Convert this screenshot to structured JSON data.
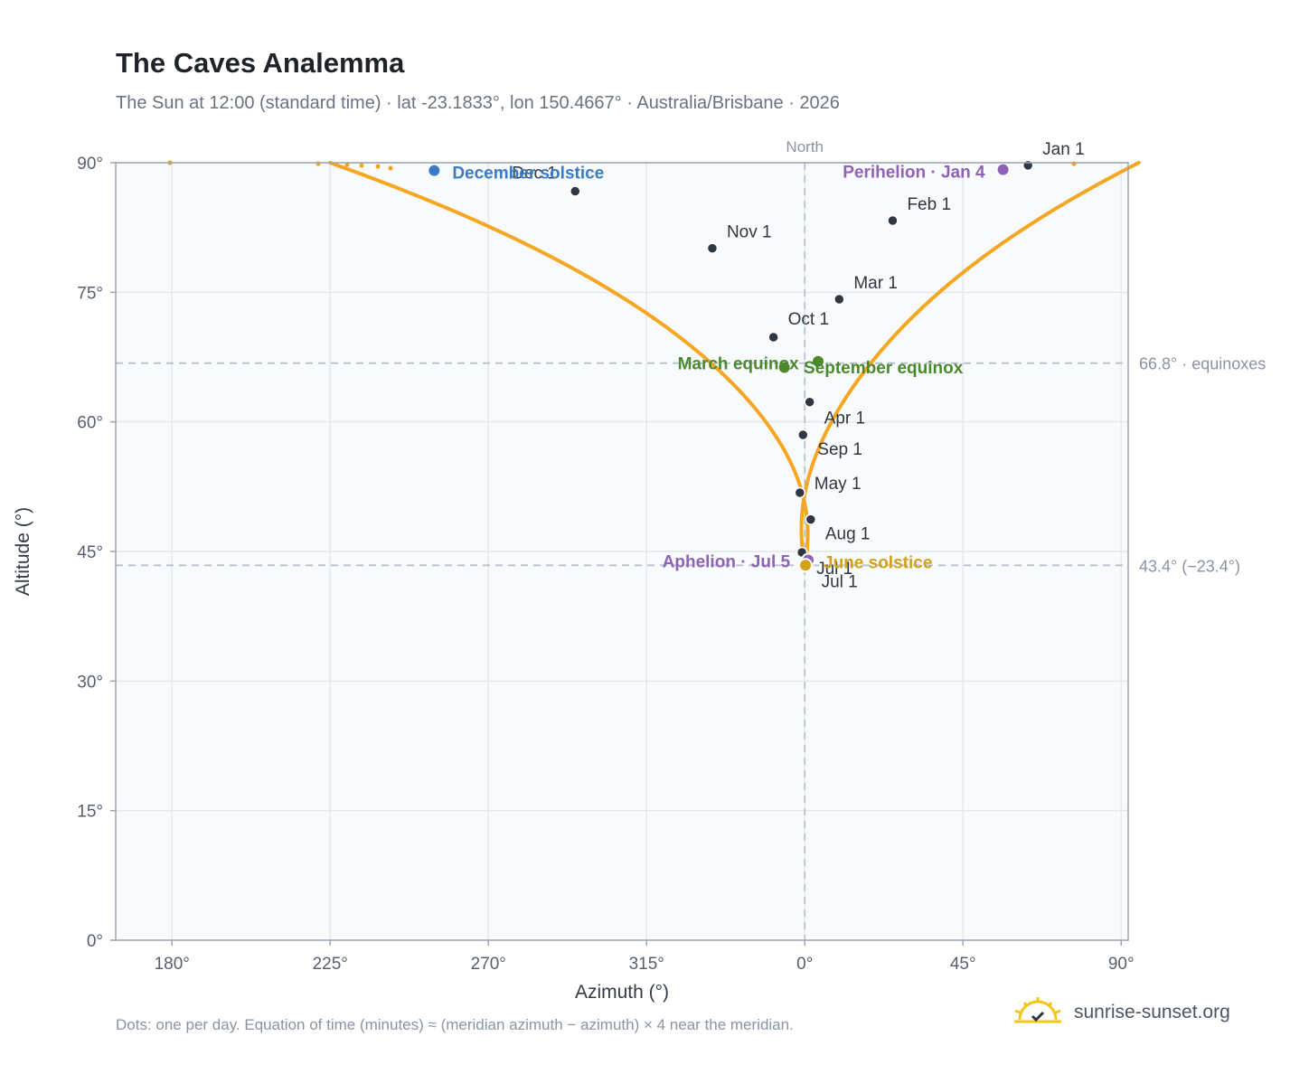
{
  "header": {
    "title": "The Caves Analemma",
    "subtitle": "The Sun at 12:00 (standard time) · lat -23.1833°, lon 150.4667° · Australia/Brisbane · 2026"
  },
  "footer": {
    "note": "Dots: one per day. Equation of time (minutes) ≈ (meridian azimuth − azimuth) × 4 near the meridian.",
    "brand": "sunrise-sunset.org"
  },
  "chart_data": {
    "type": "scatter",
    "xlabel": "Azimuth (°)",
    "ylabel": "Altitude (°)",
    "x_scale": "azimuth centered on north (0°); left side 180°→360°, right side 0°→90°",
    "xlim_offset_from_north": [
      -196,
      92
    ],
    "ylim": [
      0,
      90
    ],
    "x_ticks": [
      {
        "az": 180,
        "label": "180°"
      },
      {
        "az": 225,
        "label": "225°"
      },
      {
        "az": 270,
        "label": "270°"
      },
      {
        "az": 315,
        "label": "315°"
      },
      {
        "az": 0,
        "label": "0°"
      },
      {
        "az": 45,
        "label": "45°"
      },
      {
        "az": 90,
        "label": "90°"
      }
    ],
    "y_ticks": [
      {
        "alt": 0,
        "label": "0°"
      },
      {
        "alt": 15,
        "label": "15°"
      },
      {
        "alt": 30,
        "label": "30°"
      },
      {
        "alt": 45,
        "label": "45°"
      },
      {
        "alt": 60,
        "label": "60°"
      },
      {
        "alt": 75,
        "label": "75°"
      },
      {
        "alt": 90,
        "label": "90°"
      }
    ],
    "grid": true,
    "north_line": {
      "az": 0,
      "label": "North"
    },
    "reference_lines": [
      {
        "alt": 66.8,
        "label": "66.8° · equinoxes"
      },
      {
        "alt": 43.4,
        "label": "43.4° (−23.4°)"
      }
    ],
    "daily_dot_color": "#f5a623",
    "month_markers": [
      {
        "label": "Jan 1",
        "az": 63.5,
        "alt": 89.7
      },
      {
        "label": "Feb 1",
        "az": 25.0,
        "alt": 83.3
      },
      {
        "label": "Mar 1",
        "az": 9.8,
        "alt": 74.2
      },
      {
        "label": "Apr 1",
        "az": 1.4,
        "alt": 62.3
      },
      {
        "label": "May 1",
        "az": 358.6,
        "alt": 51.8
      },
      {
        "label": "Jul 1",
        "az": 359.2,
        "alt": 44.9
      },
      {
        "label": "Jul 1",
        "az": 0.1,
        "alt": 43.6
      },
      {
        "label": "Aug 1",
        "az": 1.7,
        "alt": 48.7
      },
      {
        "label": "Sep 1",
        "az": 359.5,
        "alt": 58.5
      },
      {
        "label": "Oct 1",
        "az": 351.1,
        "alt": 69.8
      },
      {
        "label": "Nov 1",
        "az": 333.7,
        "alt": 80.1
      },
      {
        "label": "Dec 1",
        "az": 294.7,
        "alt": 86.7
      }
    ],
    "events": [
      {
        "label": "December solstice",
        "az": 254.6,
        "alt": 89.1,
        "color": "#3a7bc8"
      },
      {
        "label": "Perihelion · Jan 4",
        "az": 56.4,
        "alt": 89.2,
        "color": "#8e63b6"
      },
      {
        "label": "March equinox",
        "az": 354.2,
        "alt": 66.3,
        "color": "#4a8a2c"
      },
      {
        "label": "September equinox",
        "az": 3.8,
        "alt": 67.0,
        "color": "#4a8a2c"
      },
      {
        "label": "Aphelion · Jul 5",
        "az": 1.0,
        "alt": 44.0,
        "color": "#8e63b6"
      },
      {
        "label": "June solstice",
        "az": 0.2,
        "alt": 43.4,
        "color": "#d4a017"
      }
    ]
  }
}
